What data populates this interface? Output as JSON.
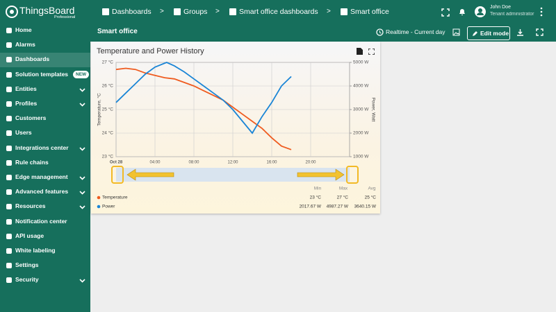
{
  "logo": {
    "name": "ThingsBoard",
    "edition": "Professional"
  },
  "breadcrumbs": [
    "Dashboards",
    "Groups",
    "Smart office dashboards",
    "Smart office"
  ],
  "user": {
    "name": "John Doe",
    "role": "Tenant administrator"
  },
  "menu": [
    {
      "label": "Home"
    },
    {
      "label": "Alarms"
    },
    {
      "label": "Dashboards",
      "active": true
    },
    {
      "label": "Solution templates",
      "badge": "NEW"
    },
    {
      "label": "Entities",
      "expandable": true
    },
    {
      "label": "Profiles",
      "expandable": true
    },
    {
      "label": "Customers"
    },
    {
      "label": "Users"
    },
    {
      "label": "Integrations center",
      "expandable": true
    },
    {
      "label": "Rule chains"
    },
    {
      "label": "Edge management",
      "expandable": true
    },
    {
      "label": "Advanced features",
      "expandable": true
    },
    {
      "label": "Resources",
      "expandable": true
    },
    {
      "label": "Notification center"
    },
    {
      "label": "API usage"
    },
    {
      "label": "White labeling"
    },
    {
      "label": "Settings"
    },
    {
      "label": "Security",
      "expandable": true
    }
  ],
  "toolbar": {
    "title": "Smart office",
    "timewindow": "Realtime - Current day",
    "edit_button": "Edit mode"
  },
  "widget": {
    "title": "Temperature and Power History",
    "y_label": "Temperature, °C",
    "y2_label": "Power, Watt",
    "xlim": [
      0,
      24
    ],
    "xticks": [
      {
        "value": 0,
        "label": "Oct 28"
      },
      {
        "value": 4,
        "label": "04:00"
      },
      {
        "value": 8,
        "label": "08:00"
      },
      {
        "value": 12,
        "label": "12:00"
      },
      {
        "value": 16,
        "label": "16:00"
      },
      {
        "value": 20,
        "label": "20:00"
      }
    ],
    "ylim": [
      23,
      27
    ],
    "yticks": [
      {
        "value": 27,
        "label": "27 °C"
      },
      {
        "value": 26,
        "label": "26 °C"
      },
      {
        "value": 25,
        "label": "25 °C"
      },
      {
        "value": 24,
        "label": "24 °C"
      },
      {
        "value": 23,
        "label": "23 °C"
      }
    ],
    "y2lim": [
      1000,
      5000
    ],
    "y2ticks": [
      {
        "value": 5000,
        "label": "5000 W"
      },
      {
        "value": 4000,
        "label": "4000 W"
      },
      {
        "value": 3000,
        "label": "3000 W"
      },
      {
        "value": 2000,
        "label": "2000 W"
      },
      {
        "value": 1000,
        "label": "1000 W"
      }
    ],
    "grid": true,
    "series": [
      {
        "name": "Temperature",
        "color": "#ef5b1f",
        "x": [
          0,
          1,
          2,
          3,
          4,
          5,
          6,
          7,
          8,
          9,
          10,
          11,
          12,
          13,
          14,
          15,
          16,
          17,
          18
        ],
        "values": [
          26.7,
          26.75,
          26.7,
          26.55,
          26.45,
          26.35,
          26.3,
          26.15,
          26.0,
          25.8,
          25.6,
          25.4,
          25.1,
          24.8,
          24.5,
          24.2,
          23.8,
          23.45,
          23.3
        ]
      },
      {
        "name": "Power",
        "color": "#1a85d6",
        "axis": "y2",
        "x": [
          0,
          1,
          2,
          3,
          4,
          5.2,
          6,
          7,
          8,
          9,
          10,
          11,
          12,
          13,
          14,
          15,
          16,
          17,
          18
        ],
        "values": [
          3300,
          3700,
          4100,
          4500,
          4800,
          5000,
          4850,
          4600,
          4300,
          4000,
          3700,
          3400,
          3000,
          2500,
          2000,
          2700,
          3300,
          4000,
          4400
        ]
      }
    ],
    "legend": {
      "columns": [
        "Min",
        "Max",
        "Avg"
      ],
      "rows": [
        [
          "23 °C",
          "27 °C",
          "25 °C"
        ],
        [
          "2017.67 W",
          "4987.27 W",
          "3640.15 W"
        ]
      ]
    }
  }
}
